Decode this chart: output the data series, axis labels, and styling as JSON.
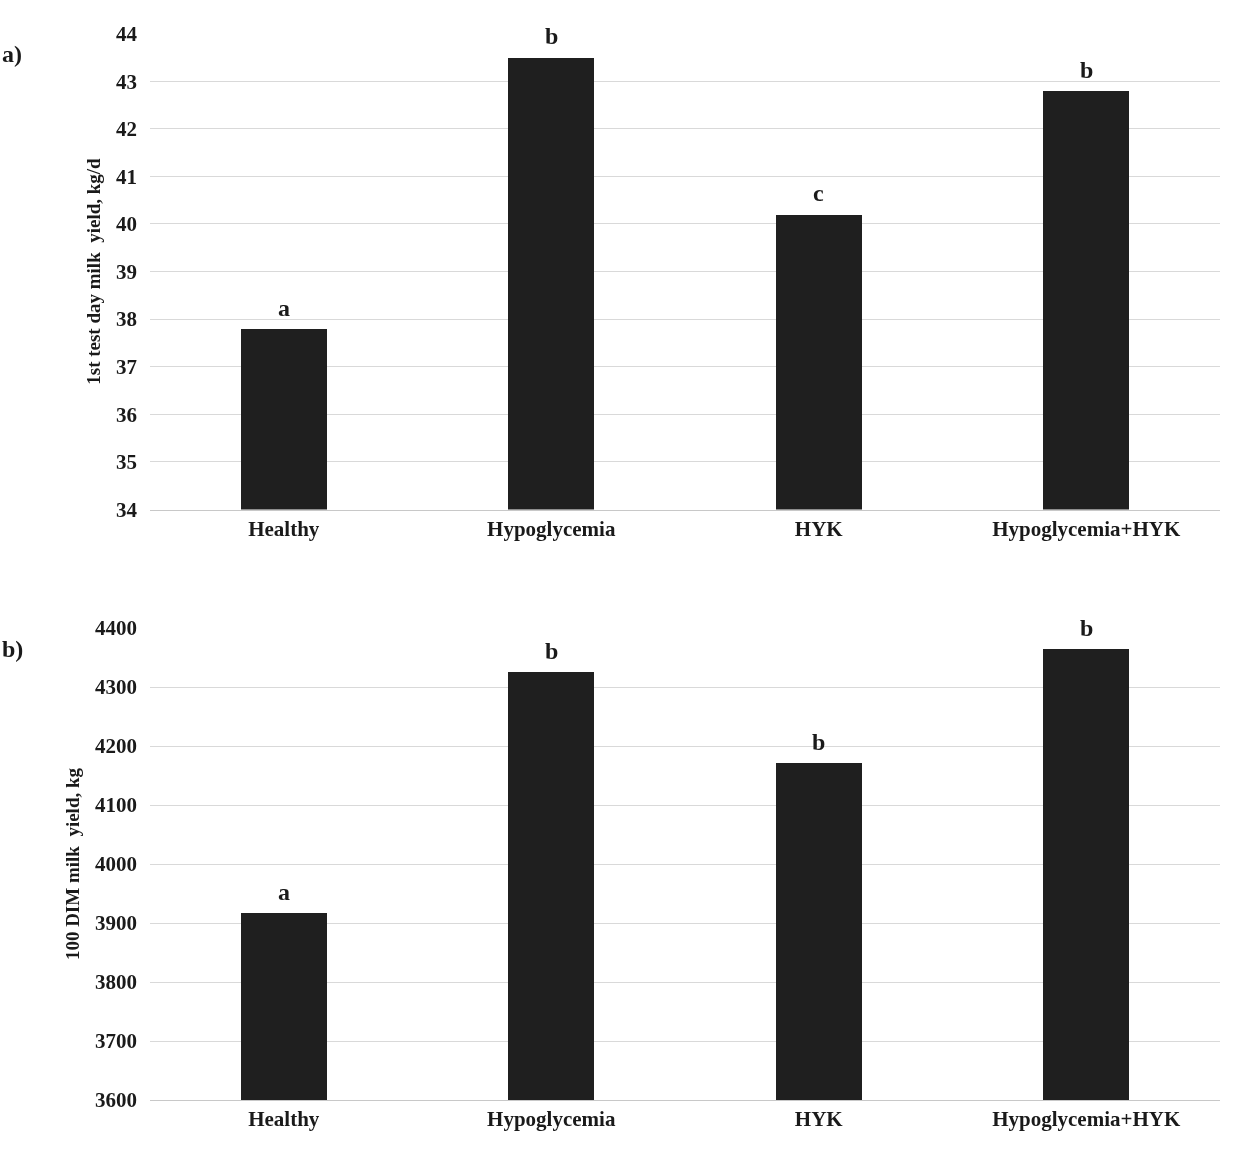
{
  "chart_data": [
    {
      "type": "bar",
      "title": "a)",
      "ylabel": "1st test day milk  yield, kg/d",
      "categories": [
        "Healthy",
        "Hypoglycemia",
        "HYK",
        "Hypoglycemia+HYK"
      ],
      "values": [
        37.8,
        43.5,
        40.2,
        42.8
      ],
      "color": "#1f1f1f",
      "ylim": [
        34,
        44
      ],
      "yticks": [
        34,
        35,
        36,
        37,
        38,
        39,
        40,
        41,
        42,
        43,
        44
      ],
      "grid": "y",
      "annotations": [
        {
          "text": "a",
          "x": "Healthy",
          "y": 37.8
        },
        {
          "text": "b",
          "x": "Hypoglycemia",
          "y": 43.5
        },
        {
          "text": "c",
          "x": "HYK",
          "y": 40.2
        },
        {
          "text": "b",
          "x": "Hypoglycemia+HYK",
          "y": 42.8
        }
      ]
    },
    {
      "type": "bar",
      "title": "b)",
      "ylabel": "100 DIM milk  yield, kg",
      "categories": [
        "Healthy",
        "Hypoglycemia",
        "HYK",
        "Hypoglycemia+HYK"
      ],
      "values": [
        3917,
        4325,
        4171,
        4365
      ],
      "color": "#1f1f1f",
      "ylim": [
        3600,
        4400
      ],
      "yticks": [
        3600,
        3700,
        3800,
        3900,
        4000,
        4100,
        4200,
        4300,
        4400
      ],
      "grid": "y",
      "annotations": [
        {
          "text": "a",
          "x": "Healthy",
          "y": 3917
        },
        {
          "text": "b",
          "x": "Hypoglycemia",
          "y": 4325
        },
        {
          "text": "b",
          "x": "HYK",
          "y": 4171
        },
        {
          "text": "b",
          "x": "Hypoglycemia+HYK",
          "y": 4365
        }
      ]
    }
  ]
}
